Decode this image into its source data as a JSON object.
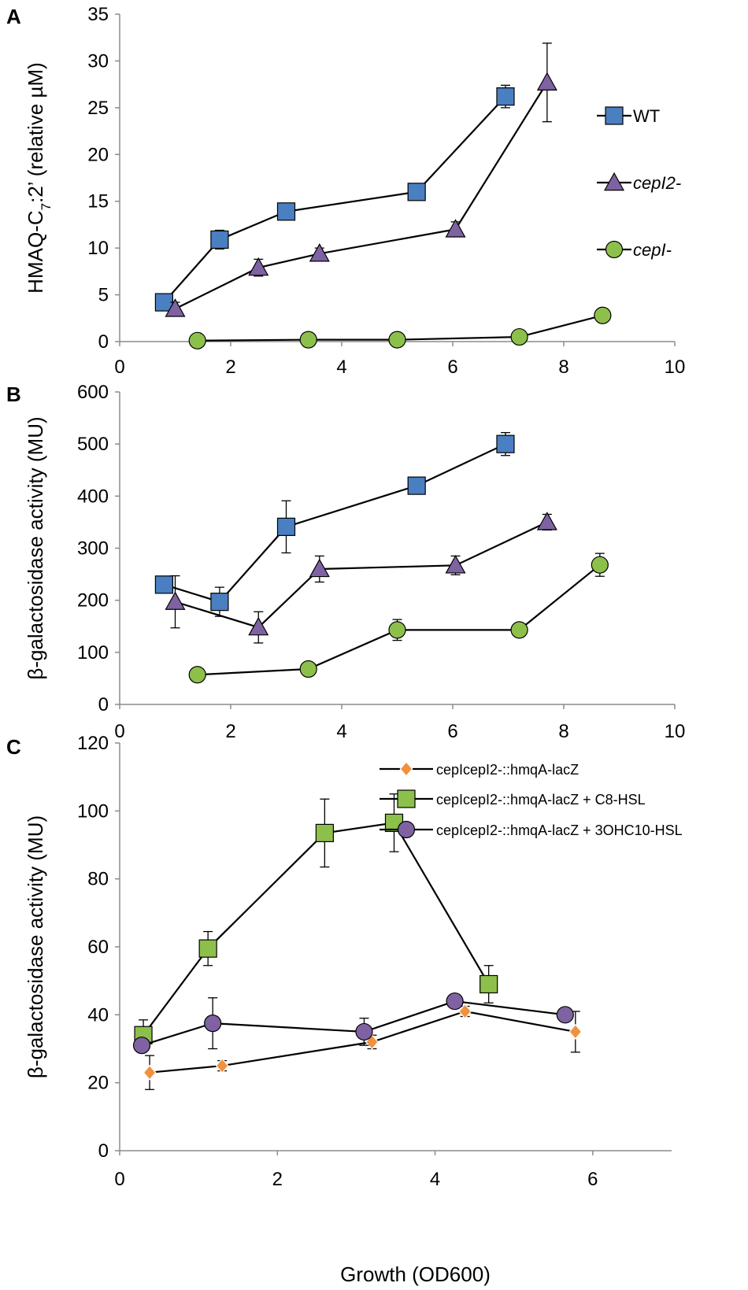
{
  "chart_data": [
    {
      "panel": "A",
      "type": "line",
      "xlabel": "",
      "ylabel_parts": [
        "HMAQ-C",
        "7",
        ":2’ (relative µM)"
      ],
      "xlim": [
        0,
        10
      ],
      "ylim": [
        0,
        35
      ],
      "xticks": [
        "0",
        "2",
        "4",
        "6",
        "8",
        "10"
      ],
      "yticks": [
        "0",
        "5",
        "10",
        "15",
        "20",
        "25",
        "30",
        "35"
      ],
      "legend_style": "right",
      "series": [
        {
          "name": "WT",
          "italic": false,
          "marker": "square",
          "color": "#4a7fc1",
          "x": [
            0.8,
            1.8,
            3.0,
            5.35,
            6.95
          ],
          "y": [
            4.2,
            10.9,
            13.9,
            16.0,
            26.2
          ],
          "err": [
            0.9,
            1.0,
            0.6,
            0.5,
            1.2
          ]
        },
        {
          "name": "cepI2-",
          "italic": true,
          "marker": "triangle",
          "color": "#7e62a2",
          "x": [
            1.0,
            2.5,
            3.6,
            6.05,
            7.7
          ],
          "y": [
            3.5,
            7.9,
            9.4,
            12.0,
            27.7
          ],
          "err": [
            0.7,
            0.9,
            0.6,
            0.8,
            4.2
          ]
        },
        {
          "name": "cepI-",
          "italic": true,
          "marker": "circle",
          "color": "#8dc04b",
          "x": [
            1.4,
            3.4,
            5.0,
            7.2,
            8.7
          ],
          "y": [
            0.1,
            0.2,
            0.2,
            0.5,
            2.8
          ],
          "err": [
            0,
            0,
            0,
            0.2,
            0.3
          ]
        }
      ]
    },
    {
      "panel": "B",
      "type": "line",
      "xlabel": "",
      "ylabel_parts": [
        "β-galactosidase  activity (MU)"
      ],
      "xlim": [
        0,
        10
      ],
      "ylim": [
        0,
        600
      ],
      "xticks": [
        "0",
        "2",
        "4",
        "6",
        "8",
        "10"
      ],
      "yticks": [
        "0",
        "100",
        "200",
        "300",
        "400",
        "500",
        "600"
      ],
      "legend_style": "none",
      "series": [
        {
          "name": "WT",
          "marker": "square",
          "color": "#4a7fc1",
          "x": [
            0.8,
            1.8,
            3.0,
            5.35,
            6.95
          ],
          "y": [
            230,
            197,
            341,
            420,
            500
          ],
          "err": [
            15,
            28,
            50,
            15,
            22
          ]
        },
        {
          "name": "cepI2-",
          "marker": "triangle",
          "color": "#7e62a2",
          "x": [
            1.0,
            2.5,
            3.6,
            6.05,
            7.7
          ],
          "y": [
            197,
            148,
            260,
            267,
            350
          ],
          "err": [
            50,
            30,
            25,
            18,
            15
          ]
        },
        {
          "name": "cepI-",
          "marker": "circle",
          "color": "#8dc04b",
          "x": [
            1.4,
            3.4,
            5.0,
            7.2,
            8.65
          ],
          "y": [
            57,
            68,
            143,
            143,
            268
          ],
          "err": [
            0,
            0,
            20,
            0,
            22
          ]
        }
      ]
    },
    {
      "panel": "C",
      "type": "line",
      "xlabel": "Growth (OD600)",
      "ylabel_parts": [
        "β-galactosidase  activity (MU)"
      ],
      "xlim": [
        0,
        7
      ],
      "ylim": [
        0,
        120
      ],
      "xticks": [
        "0",
        "2",
        "4",
        "6"
      ],
      "yticks": [
        "0",
        "20",
        "40",
        "60",
        "80",
        "100",
        "120"
      ],
      "legend_style": "top",
      "series": [
        {
          "name": "cepIcepI2-::hmqA-lacZ",
          "marker": "diamond",
          "color": "#f0913e",
          "x": [
            0.38,
            1.3,
            3.2,
            4.38,
            5.78
          ],
          "y": [
            23,
            25,
            32,
            41,
            35
          ],
          "err": [
            5,
            1.5,
            2,
            1.5,
            6
          ]
        },
        {
          "name": "cepIcepI2-::hmqA-lacZ + C8-HSL",
          "marker": "square",
          "color": "#8dc04b",
          "x": [
            0.3,
            1.12,
            2.6,
            3.48,
            4.68
          ],
          "y": [
            34,
            59.5,
            93.5,
            96.5,
            49
          ],
          "err": [
            4.5,
            5,
            10,
            8.5,
            5.5
          ]
        },
        {
          "name": "cepIcepI2-::hmqA-lacZ + 3OHC10-HSL",
          "marker": "circle",
          "color": "#7e62a2",
          "x": [
            0.28,
            1.18,
            3.1,
            4.25,
            5.65
          ],
          "y": [
            31,
            37.5,
            35,
            44,
            40
          ],
          "err": [
            0,
            7.5,
            4,
            0,
            0
          ]
        }
      ]
    }
  ]
}
